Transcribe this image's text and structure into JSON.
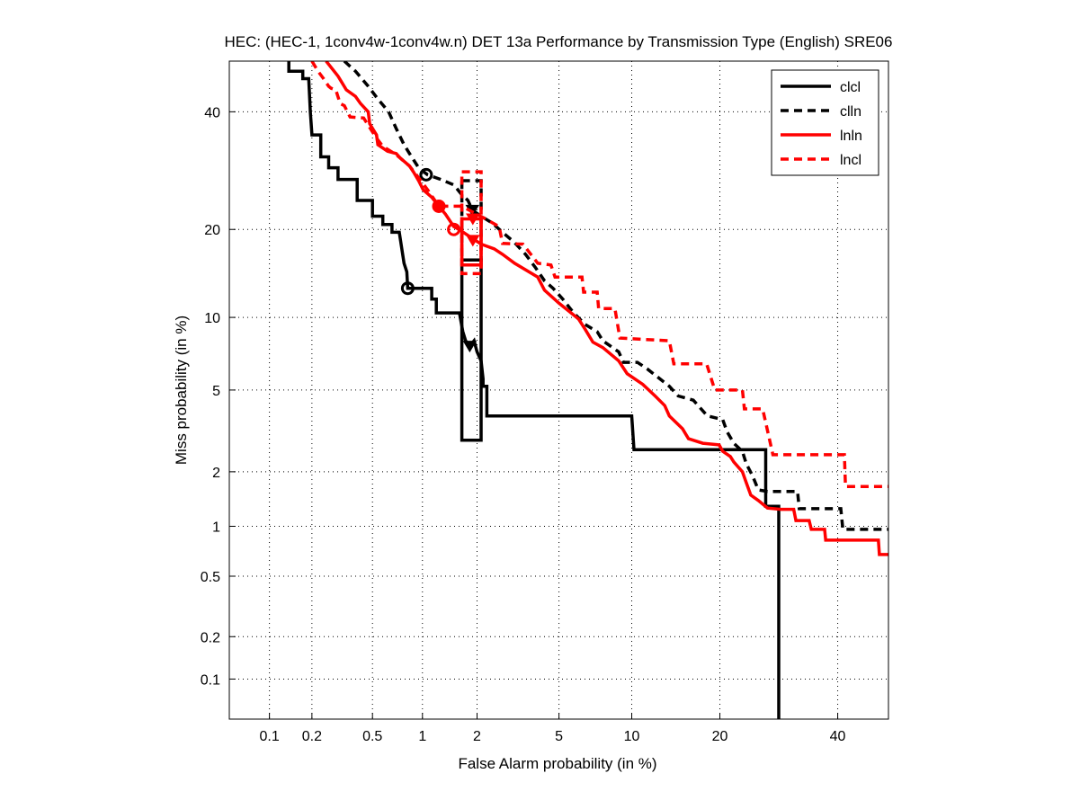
{
  "chart_data": {
    "type": "line",
    "title": "HEC: (HEC-1, 1conv4w-1conv4w.n) DET 13a Performance by Transmission Type (English) SRE06",
    "xlabel": "False Alarm probability (in %)",
    "ylabel": "Miss probability (in %)",
    "scale": "normal-deviate (probit)",
    "xlim": [
      0.05,
      50
    ],
    "ylim": [
      0.05,
      50
    ],
    "grid": true,
    "legend_position": "top-right",
    "xticks": [
      0.1,
      0.2,
      0.5,
      1,
      2,
      5,
      10,
      20,
      40
    ],
    "xtick_labels": [
      "0.1",
      "0.2",
      "0.5",
      "1",
      "2",
      "5",
      "10",
      "20",
      "40"
    ],
    "yticks": [
      0.1,
      0.2,
      0.5,
      1,
      2,
      5,
      10,
      20,
      40
    ],
    "ytick_labels": [
      "0.1",
      "0.2",
      "0.5",
      "1",
      "2",
      "5",
      "10",
      "20",
      "40"
    ],
    "series": [
      {
        "name": "clcl",
        "color": "#000000",
        "dash": false,
        "points": [
          [
            0.138,
            50
          ],
          [
            0.138,
            48
          ],
          [
            0.173,
            48
          ],
          [
            0.173,
            46.5
          ],
          [
            0.19,
            46.5
          ],
          [
            0.195,
            40
          ],
          [
            0.2,
            35.6
          ],
          [
            0.23,
            35.6
          ],
          [
            0.23,
            31.6
          ],
          [
            0.26,
            31.6
          ],
          [
            0.26,
            29.7
          ],
          [
            0.3,
            29.7
          ],
          [
            0.3,
            27.7
          ],
          [
            0.4,
            27.7
          ],
          [
            0.4,
            24.3
          ],
          [
            0.5,
            24.3
          ],
          [
            0.5,
            21.9
          ],
          [
            0.58,
            21.9
          ],
          [
            0.58,
            20.7
          ],
          [
            0.66,
            20.7
          ],
          [
            0.66,
            19.6
          ],
          [
            0.73,
            19.6
          ],
          [
            0.78,
            15.6
          ],
          [
            0.81,
            14.6
          ],
          [
            0.82,
            12.8
          ],
          [
            1.13,
            12.8
          ],
          [
            1.13,
            11.7
          ],
          [
            1.2,
            11.7
          ],
          [
            1.2,
            10.4
          ],
          [
            1.61,
            10.4
          ],
          [
            1.68,
            8.8
          ],
          [
            1.74,
            8.1
          ],
          [
            1.83,
            7.7
          ],
          [
            1.93,
            8.1
          ],
          [
            2,
            7.3
          ],
          [
            2.1,
            6.7
          ],
          [
            2.15,
            5.6
          ],
          [
            2.15,
            5.2
          ],
          [
            2.25,
            5.2
          ],
          [
            2.25,
            3.8
          ],
          [
            10,
            3.8
          ],
          [
            10.2,
            2.6
          ],
          [
            27,
            2.6
          ],
          [
            27,
            1.3
          ],
          [
            29.2,
            1.3
          ],
          [
            29.2,
            0.05
          ]
        ],
        "box": {
          "x": [
            1.66,
            2.1
          ],
          "y": [
            2.9,
            16
          ]
        },
        "min_dcf": [
          0.82,
          12.8
        ],
        "act_dcf": [
          1.83,
          7.7
        ]
      },
      {
        "name": "clln",
        "color": "#000000",
        "dash": true,
        "points": [
          [
            0.33,
            50
          ],
          [
            0.39,
            48
          ],
          [
            0.47,
            45
          ],
          [
            0.54,
            42.5
          ],
          [
            0.63,
            40
          ],
          [
            0.7,
            36.8
          ],
          [
            0.78,
            33.8
          ],
          [
            0.84,
            32.2
          ],
          [
            0.95,
            29.7
          ],
          [
            1.07,
            28.5
          ],
          [
            1.27,
            27.7
          ],
          [
            1.5,
            26.8
          ],
          [
            1.65,
            25.3
          ],
          [
            1.79,
            24.3
          ],
          [
            1.89,
            22.8
          ],
          [
            2.1,
            21.9
          ],
          [
            2.4,
            20.9
          ],
          [
            2.7,
            19.6
          ],
          [
            3.1,
            18.2
          ],
          [
            3.5,
            16.7
          ],
          [
            3.9,
            15.1
          ],
          [
            4.3,
            13.6
          ],
          [
            4.7,
            12.8
          ],
          [
            5.2,
            11.7
          ],
          [
            5.8,
            10.4
          ],
          [
            6.5,
            9.4
          ],
          [
            7.3,
            8.8
          ],
          [
            7.7,
            8.1
          ],
          [
            8.9,
            7.3
          ],
          [
            9.3,
            6.6
          ],
          [
            10.5,
            6.6
          ],
          [
            11.4,
            6.2
          ],
          [
            12.7,
            5.6
          ],
          [
            13.7,
            5.2
          ],
          [
            14.7,
            4.7
          ],
          [
            16.5,
            4.5
          ],
          [
            18.3,
            3.8
          ],
          [
            20.4,
            3.65
          ],
          [
            21,
            3.2
          ],
          [
            22,
            2.8
          ],
          [
            23.3,
            2.55
          ],
          [
            23.9,
            2.2
          ],
          [
            24.9,
            1.9
          ],
          [
            25.8,
            1.6
          ],
          [
            27.3,
            1.57
          ],
          [
            32.5,
            1.57
          ],
          [
            32.8,
            1.26
          ],
          [
            40.6,
            1.26
          ],
          [
            41,
            0.96
          ],
          [
            50,
            0.96
          ]
        ],
        "box": {
          "x": [
            1.66,
            2.1
          ],
          "y": [
            16,
            27.5
          ]
        },
        "min_dcf": [
          1.05,
          28.5
        ],
        "act_dcf": [
          1.89,
          22.8
        ]
      },
      {
        "name": "lnln",
        "color": "#ff0000",
        "dash": false,
        "points": [
          [
            0.25,
            50
          ],
          [
            0.3,
            47
          ],
          [
            0.34,
            44.3
          ],
          [
            0.39,
            43
          ],
          [
            0.42,
            41.6
          ],
          [
            0.47,
            40
          ],
          [
            0.48,
            37.7
          ],
          [
            0.53,
            35.6
          ],
          [
            0.54,
            33.8
          ],
          [
            0.62,
            32.6
          ],
          [
            0.7,
            32.2
          ],
          [
            0.74,
            31.4
          ],
          [
            0.84,
            30
          ],
          [
            0.89,
            28.9
          ],
          [
            0.95,
            27.5
          ],
          [
            1.01,
            26
          ],
          [
            1.13,
            24.8
          ],
          [
            1.24,
            23.4
          ],
          [
            1.35,
            22.2
          ],
          [
            1.5,
            20.4
          ],
          [
            1.6,
            20
          ],
          [
            2.1,
            18
          ],
          [
            2.45,
            17.4
          ],
          [
            2.7,
            16.7
          ],
          [
            3.1,
            15.6
          ],
          [
            4,
            14
          ],
          [
            4.3,
            12.6
          ],
          [
            5,
            11.3
          ],
          [
            5.5,
            10.6
          ],
          [
            6.1,
            9.85
          ],
          [
            6.5,
            9
          ],
          [
            7,
            8
          ],
          [
            7.7,
            7.6
          ],
          [
            8.9,
            6.7
          ],
          [
            9.6,
            5.9
          ],
          [
            11,
            5.3
          ],
          [
            12.2,
            4.7
          ],
          [
            13.2,
            4.25
          ],
          [
            13.7,
            3.8
          ],
          [
            15.2,
            3.3
          ],
          [
            15.9,
            2.95
          ],
          [
            17.7,
            2.8
          ],
          [
            19.9,
            2.75
          ],
          [
            20.4,
            2.55
          ],
          [
            21.5,
            2.4
          ],
          [
            22,
            2.25
          ],
          [
            23.3,
            2
          ],
          [
            23.9,
            1.75
          ],
          [
            24.6,
            1.5
          ],
          [
            25.8,
            1.4
          ],
          [
            27.3,
            1.27
          ],
          [
            29.5,
            1.25
          ],
          [
            31.8,
            1.25
          ],
          [
            32.2,
            1.08
          ],
          [
            34.6,
            1.08
          ],
          [
            35,
            0.96
          ],
          [
            37.5,
            0.96
          ],
          [
            37.7,
            0.83
          ],
          [
            48,
            0.83
          ],
          [
            48.2,
            0.68
          ],
          [
            50,
            0.68
          ]
        ],
        "box": {
          "x": [
            1.66,
            2.1
          ],
          "y": [
            15.4,
            21.5
          ]
        },
        "min_dcf": [
          1.5,
          20
        ],
        "act_dcf": [
          1.9,
          18.5
        ]
      },
      {
        "name": "lncl",
        "color": "#ff0000",
        "dash": true,
        "points": [
          [
            0.2,
            50
          ],
          [
            0.22,
            48
          ],
          [
            0.24,
            46.5
          ],
          [
            0.26,
            45
          ],
          [
            0.27,
            44.6
          ],
          [
            0.29,
            44.3
          ],
          [
            0.31,
            41.6
          ],
          [
            0.33,
            41.2
          ],
          [
            0.36,
            39
          ],
          [
            0.44,
            38.8
          ],
          [
            0.53,
            35
          ],
          [
            0.58,
            33.5
          ],
          [
            0.7,
            32
          ],
          [
            0.84,
            30
          ],
          [
            0.95,
            28
          ],
          [
            1.07,
            26
          ],
          [
            1.24,
            23.4
          ],
          [
            1.66,
            23.4
          ],
          [
            1.9,
            22.5
          ],
          [
            2.15,
            21.7
          ],
          [
            2.6,
            20.4
          ],
          [
            2.7,
            18.1
          ],
          [
            3.4,
            18
          ],
          [
            4,
            15.6
          ],
          [
            4.6,
            15.4
          ],
          [
            4.8,
            14
          ],
          [
            6.3,
            14
          ],
          [
            6.4,
            12.4
          ],
          [
            7.3,
            12.4
          ],
          [
            7.4,
            10.8
          ],
          [
            8.6,
            10.8
          ],
          [
            9,
            8.3
          ],
          [
            13.7,
            8.1
          ],
          [
            14.2,
            6.5
          ],
          [
            18.2,
            6.5
          ],
          [
            19.3,
            5
          ],
          [
            23.3,
            5
          ],
          [
            23.6,
            4.1
          ],
          [
            26.5,
            4.1
          ],
          [
            28.2,
            2.45
          ],
          [
            41.3,
            2.45
          ],
          [
            41.5,
            1.67
          ],
          [
            50,
            1.67
          ]
        ],
        "box": {
          "x": [
            1.66,
            2.1
          ],
          "y": [
            14.4,
            29
          ]
        },
        "min_dcf": [
          1.24,
          23.4
        ],
        "act_dcf": [
          1.9,
          21.5
        ]
      }
    ]
  }
}
